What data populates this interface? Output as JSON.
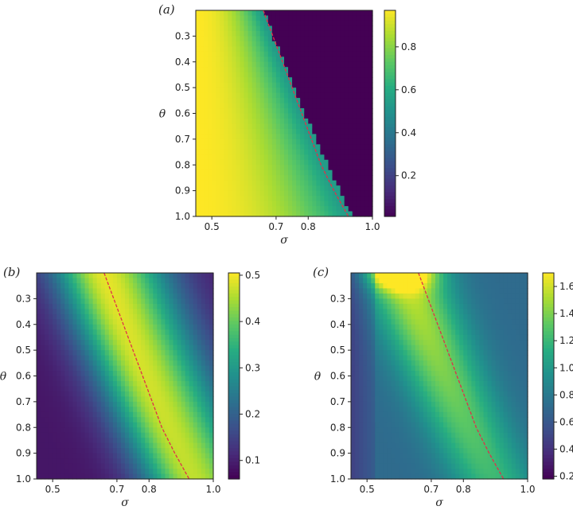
{
  "chart_data": [
    {
      "panel_label": "(a)",
      "type": "heatmap",
      "colormap": "viridis",
      "xlabel": "σ",
      "ylabel": "θ",
      "x_range": [
        0.45,
        1.0
      ],
      "y_range": [
        0.2,
        1.0
      ],
      "x_ticks": [
        "0.5",
        "0.7",
        "0.8",
        "1.0"
      ],
      "x_tick_values": [
        0.5,
        0.7,
        0.8,
        1.0
      ],
      "y_ticks": [
        "0.3",
        "0.4",
        "0.5",
        "0.6",
        "0.7",
        "0.8",
        "0.9",
        "1.0"
      ],
      "y_tick_values": [
        0.3,
        0.4,
        0.5,
        0.6,
        0.7,
        0.8,
        0.9,
        1.0
      ],
      "colorbar_range": [
        0.01,
        0.97
      ],
      "colorbar_ticks": [
        "0.2",
        "0.4",
        "0.6",
        "0.8"
      ],
      "colorbar_tick_values": [
        0.2,
        0.4,
        0.6,
        0.8
      ],
      "boundary_curve": {
        "color": "#e0304a",
        "style": "dashed",
        "points": [
          [
            0.66,
            0.2
          ],
          [
            0.72,
            0.4
          ],
          [
            0.78,
            0.6
          ],
          [
            0.84,
            0.8
          ],
          [
            0.88,
            0.9
          ],
          [
            0.925,
            1.0
          ]
        ]
      }
    },
    {
      "panel_label": "(b)",
      "type": "heatmap",
      "colormap": "viridis",
      "xlabel": "σ",
      "ylabel": "θ",
      "x_range": [
        0.45,
        1.0
      ],
      "y_range": [
        0.2,
        1.0
      ],
      "x_ticks": [
        "0.5",
        "0.7",
        "0.8",
        "1.0"
      ],
      "x_tick_values": [
        0.5,
        0.7,
        0.8,
        1.0
      ],
      "y_ticks": [
        "0.3",
        "0.4",
        "0.5",
        "0.6",
        "0.7",
        "0.8",
        "0.9",
        "1.0"
      ],
      "y_tick_values": [
        0.3,
        0.4,
        0.5,
        0.6,
        0.7,
        0.8,
        0.9,
        1.0
      ],
      "colorbar_range": [
        0.06,
        0.505
      ],
      "colorbar_ticks": [
        "0.1",
        "0.2",
        "0.3",
        "0.4",
        "0.5"
      ],
      "colorbar_tick_values": [
        0.1,
        0.2,
        0.3,
        0.4,
        0.5
      ],
      "boundary_curve": {
        "color": "#e0304a",
        "style": "dashed",
        "points": [
          [
            0.66,
            0.2
          ],
          [
            0.72,
            0.4
          ],
          [
            0.78,
            0.6
          ],
          [
            0.84,
            0.8
          ],
          [
            0.88,
            0.9
          ],
          [
            0.925,
            1.0
          ]
        ]
      }
    },
    {
      "panel_label": "(c)",
      "type": "heatmap",
      "colormap": "viridis",
      "xlabel": "σ",
      "ylabel": "θ",
      "x_range": [
        0.45,
        1.0
      ],
      "y_range": [
        0.2,
        1.0
      ],
      "x_ticks": [
        "0.5",
        "0.7",
        "0.8",
        "1.0"
      ],
      "x_tick_values": [
        0.5,
        0.7,
        0.8,
        1.0
      ],
      "y_ticks": [
        "0.3",
        "0.4",
        "0.5",
        "0.6",
        "0.7",
        "0.8",
        "0.9",
        "1.0"
      ],
      "y_tick_values": [
        0.3,
        0.4,
        0.5,
        0.6,
        0.7,
        0.8,
        0.9,
        1.0
      ],
      "colorbar_range": [
        0.18,
        1.7
      ],
      "colorbar_ticks": [
        "0.2",
        "0.4",
        "0.6",
        "0.8",
        "1.0",
        "1.2",
        "1.4",
        "1.6"
      ],
      "colorbar_tick_values": [
        0.2,
        0.4,
        0.6,
        0.8,
        1.0,
        1.2,
        1.4,
        1.6
      ],
      "boundary_curve": {
        "color": "#e0304a",
        "style": "dashed",
        "points": [
          [
            0.66,
            0.2
          ],
          [
            0.72,
            0.4
          ],
          [
            0.78,
            0.6
          ],
          [
            0.84,
            0.8
          ],
          [
            0.88,
            0.9
          ],
          [
            0.925,
            1.0
          ]
        ]
      }
    }
  ]
}
